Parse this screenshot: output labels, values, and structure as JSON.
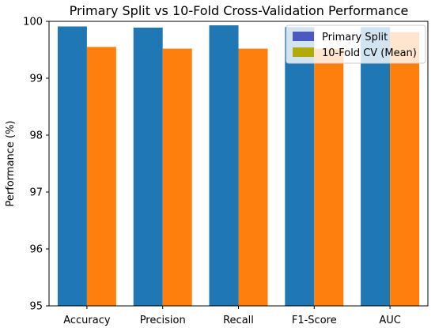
{
  "chart_data": {
    "type": "bar",
    "title": "Primary Split vs 10-Fold Cross-Validation Performance",
    "xlabel": "",
    "ylabel": "Performance (%)",
    "ylim": [
      95,
      100
    ],
    "yticks": [
      "95",
      "96",
      "97",
      "98",
      "99",
      "100"
    ],
    "categories": [
      "Accuracy",
      "Precision",
      "Recall",
      "F1-Score",
      "AUC"
    ],
    "series": [
      {
        "name": "Primary Split",
        "color": "#1f77b4",
        "values": [
          99.91,
          99.89,
          99.93,
          99.9,
          99.9
        ]
      },
      {
        "name": "10-Fold CV (Mean)",
        "color": "#ff7f0e",
        "values": [
          99.55,
          99.52,
          99.52,
          99.52,
          99.81
        ]
      }
    ],
    "legend": {
      "position": "top-right",
      "entries": [
        {
          "label": "Primary Split",
          "swatch_color": "#4a5abf"
        },
        {
          "label": "10-Fold CV (Mean)",
          "swatch_color": "#b2aa0a"
        }
      ]
    },
    "grid": false
  }
}
